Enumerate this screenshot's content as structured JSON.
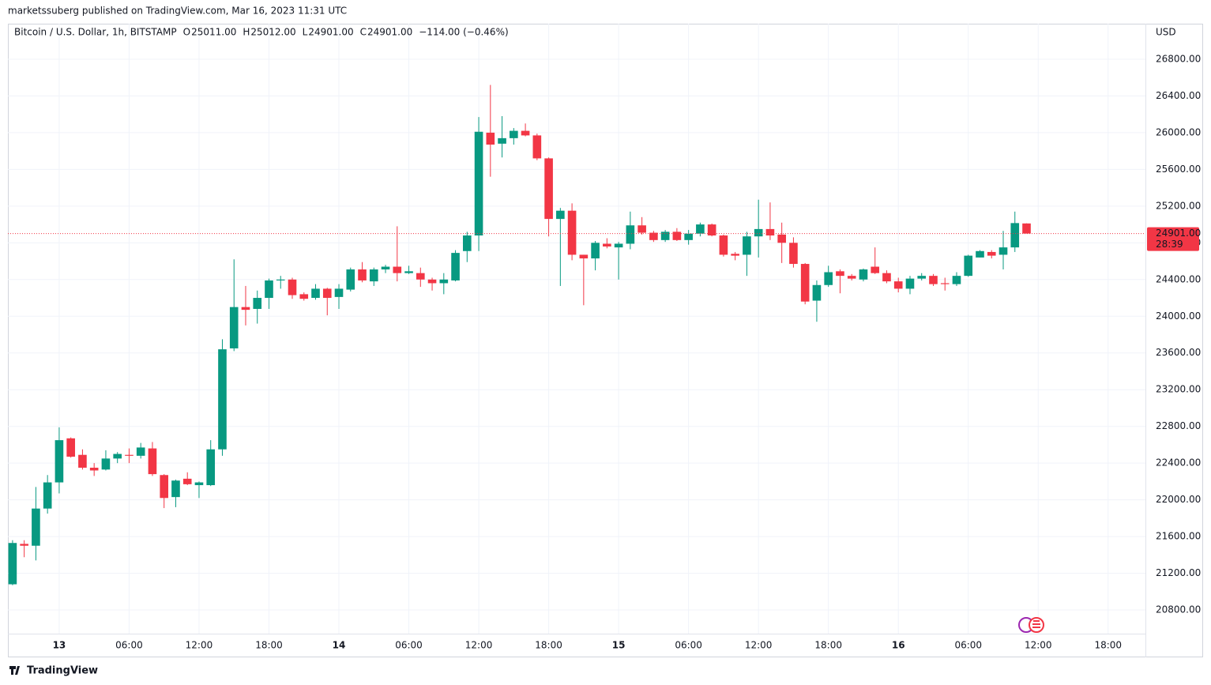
{
  "header": {
    "published": "marketssuberg published on TradingView.com, Mar 16, 2023 11:31 UTC",
    "brand": "TradingView"
  },
  "chart_data": {
    "type": "candlestick",
    "title": "Bitcoin / U.S. Dollar, 1h, BITSTAMP",
    "ohlc_legend": [
      {
        "key": "O",
        "text": "25011.00"
      },
      {
        "key": "H",
        "text": "25012.00"
      },
      {
        "key": "L",
        "text": "24901.00"
      },
      {
        "key": "C",
        "text": "24901.00"
      }
    ],
    "change_text": "−114.00 (−0.46%)",
    "currency": "USD",
    "up_color": "#089981",
    "down_color": "#f23645",
    "x": [
      -4,
      -3,
      -2,
      -1,
      0,
      1,
      2,
      3,
      4,
      5,
      6,
      7,
      8,
      9,
      10,
      11,
      12,
      13,
      14,
      15,
      16,
      17,
      18,
      19,
      20,
      21,
      22,
      23,
      24,
      25,
      26,
      27,
      28,
      29,
      30,
      31,
      32,
      33,
      34,
      35,
      36,
      37,
      38,
      39,
      40,
      41,
      42,
      43,
      44,
      45,
      46,
      47,
      48,
      49,
      50,
      51,
      52,
      53,
      54,
      55,
      56,
      57,
      58,
      59,
      60,
      61,
      62,
      63,
      64,
      65,
      66,
      67,
      68,
      69,
      70,
      71,
      72,
      73,
      74,
      75,
      76,
      77,
      78,
      79,
      80,
      81,
      82,
      83
    ],
    "open": [
      21080,
      21520,
      21500,
      21905,
      22190,
      22670,
      22490,
      22350,
      22330,
      22450,
      22490,
      22480,
      22560,
      22270,
      22030,
      22230,
      22160,
      22160,
      22550,
      23650,
      24100,
      24080,
      24200,
      24390,
      24400,
      24240,
      24200,
      24300,
      24210,
      24290,
      24510,
      24380,
      24510,
      24540,
      24470,
      24470,
      24400,
      24360,
      24390,
      24710,
      24880,
      26000,
      25880,
      25940,
      26020,
      25970,
      25720,
      25060,
      25150,
      24670,
      24630,
      24790,
      24750,
      24790,
      24990,
      24910,
      24830,
      24920,
      24830,
      24900,
      25000,
      24880,
      24680,
      24670,
      24870,
      24950,
      24890,
      24800,
      24570,
      24170,
      24340,
      24490,
      24440,
      24400,
      24540,
      24470,
      24380,
      24300,
      24410,
      24440,
      24360,
      24350,
      24440,
      24640,
      24700,
      24670,
      24750,
      25011
    ],
    "high": [
      21560,
      21560,
      22140,
      22270,
      22790,
      22680,
      22550,
      22400,
      22540,
      22520,
      22560,
      22620,
      22630,
      22280,
      22220,
      22300,
      22200,
      22650,
      23750,
      24620,
      24330,
      24280,
      24410,
      24440,
      24420,
      24260,
      24350,
      24310,
      24350,
      24530,
      24590,
      24530,
      24560,
      24980,
      24550,
      24530,
      24420,
      24470,
      24720,
      24920,
      26170,
      26520,
      26180,
      26050,
      26100,
      25990,
      25730,
      25180,
      25230,
      24670,
      24820,
      24850,
      24810,
      25140,
      25080,
      24930,
      24940,
      24960,
      24940,
      25020,
      25010,
      24890,
      24700,
      24920,
      25270,
      25240,
      25020,
      24860,
      24580,
      24390,
      24550,
      24510,
      24460,
      24520,
      24750,
      24500,
      24420,
      24440,
      24470,
      24460,
      24420,
      24480,
      24670,
      24720,
      24720,
      24930,
      25140,
      25012
    ],
    "low": [
      21070,
      21375,
      21340,
      21850,
      22070,
      22460,
      22330,
      22260,
      22320,
      22400,
      22400,
      22450,
      22260,
      21910,
      21920,
      22160,
      22020,
      22150,
      22480,
      23620,
      23900,
      23920,
      24080,
      24300,
      24190,
      24170,
      24180,
      24010,
      24080,
      24270,
      24370,
      24330,
      24470,
      24380,
      24460,
      24320,
      24280,
      24240,
      24380,
      24590,
      24710,
      25520,
      25730,
      25870,
      25960,
      25700,
      24870,
      24330,
      24610,
      24120,
      24500,
      24740,
      24400,
      24730,
      24890,
      24810,
      24810,
      24820,
      24780,
      24870,
      24870,
      24650,
      24610,
      24440,
      24640,
      24830,
      24580,
      24530,
      24130,
      23940,
      24320,
      24250,
      24390,
      24380,
      24460,
      24360,
      24260,
      24240,
      24390,
      24330,
      24280,
      24330,
      24430,
      24640,
      24630,
      24510,
      24700,
      24901
    ],
    "close": [
      21530,
      21500,
      21905,
      22190,
      22650,
      22470,
      22350,
      22320,
      22450,
      22500,
      22480,
      22570,
      22280,
      22020,
      22210,
      22170,
      22190,
      22550,
      23640,
      24100,
      24070,
      24200,
      24390,
      24400,
      24230,
      24190,
      24300,
      24200,
      24300,
      24510,
      24390,
      24510,
      24540,
      24470,
      24490,
      24400,
      24360,
      24400,
      24690,
      24880,
      26010,
      25870,
      25940,
      26020,
      25970,
      25720,
      25060,
      25150,
      24670,
      24630,
      24800,
      24760,
      24790,
      24990,
      24910,
      24830,
      24920,
      24830,
      24900,
      25000,
      24880,
      24670,
      24660,
      24870,
      24950,
      24880,
      24800,
      24570,
      24160,
      24340,
      24480,
      24440,
      24410,
      24510,
      24470,
      24380,
      24300,
      24410,
      24440,
      24350,
      24350,
      24440,
      24660,
      24710,
      24660,
      24750,
      25015,
      24901
    ],
    "last_price": {
      "value": 24901,
      "label": "24901.00"
    },
    "countdown": "28:39",
    "xlim": [
      -4.4,
      93.2
    ],
    "xticks": [
      {
        "value": 0,
        "label": "13"
      },
      {
        "value": 6,
        "label": "06:00"
      },
      {
        "value": 12,
        "label": "12:00"
      },
      {
        "value": 18,
        "label": "18:00"
      },
      {
        "value": 24,
        "label": "14"
      },
      {
        "value": 30,
        "label": "06:00"
      },
      {
        "value": 36,
        "label": "12:00"
      },
      {
        "value": 42,
        "label": "18:00"
      },
      {
        "value": 48,
        "label": "15"
      },
      {
        "value": 54,
        "label": "06:00"
      },
      {
        "value": 60,
        "label": "12:00"
      },
      {
        "value": 66,
        "label": "18:00"
      },
      {
        "value": 72,
        "label": "16"
      },
      {
        "value": 78,
        "label": "06:00"
      },
      {
        "value": 84,
        "label": "12:00"
      },
      {
        "value": 90,
        "label": "18:00"
      }
    ],
    "ylim": [
      20284,
      27187
    ],
    "yticks": [
      {
        "value": 20800,
        "label": "20800.00"
      },
      {
        "value": 21200,
        "label": "21200.00"
      },
      {
        "value": 21600,
        "label": "21600.00"
      },
      {
        "value": 22000,
        "label": "22000.00"
      },
      {
        "value": 22400,
        "label": "22400.00"
      },
      {
        "value": 22800,
        "label": "22800.00"
      },
      {
        "value": 23200,
        "label": "23200.00"
      },
      {
        "value": 23600,
        "label": "23600.00"
      },
      {
        "value": 24000,
        "label": "24000.00"
      },
      {
        "value": 24400,
        "label": "24400.00"
      },
      {
        "value": 24800,
        "label": "24800.00"
      },
      {
        "value": 25200,
        "label": "25200.00"
      },
      {
        "value": 25600,
        "label": "25600.00"
      },
      {
        "value": 26000,
        "label": "26000.00"
      },
      {
        "value": 26400,
        "label": "26400.00"
      },
      {
        "value": 26800,
        "label": "26800.00"
      }
    ],
    "grid": true
  }
}
